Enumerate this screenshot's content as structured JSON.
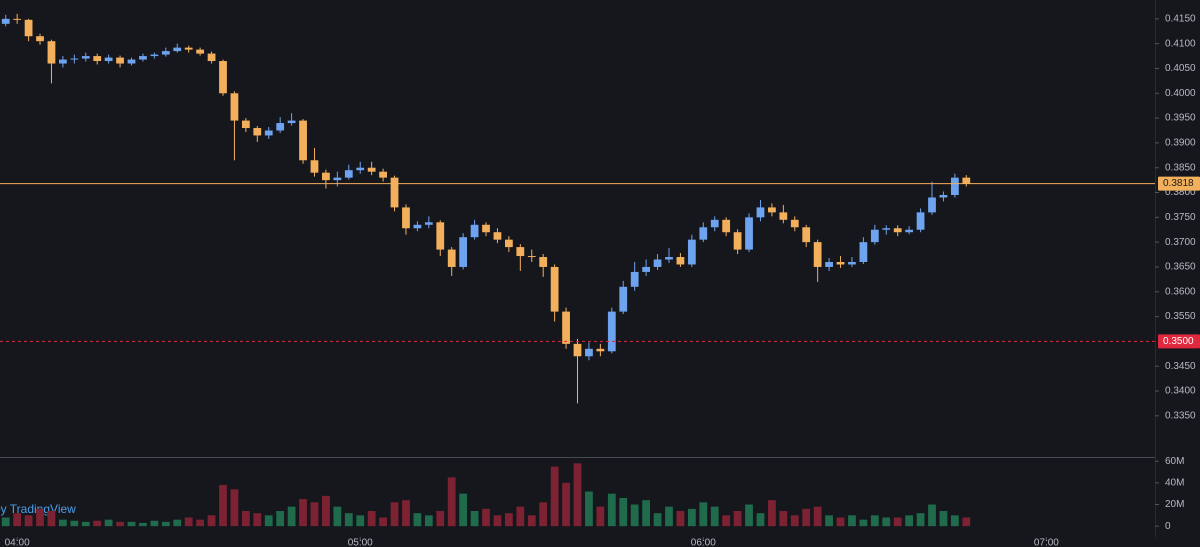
{
  "chart_data": {
    "type": "candlestick",
    "watermark": "by TradingView",
    "x": [
      238,
      240,
      242,
      244,
      246,
      248,
      250,
      252,
      254,
      256,
      258,
      260,
      262,
      264,
      266,
      268,
      270,
      272,
      274,
      276,
      278,
      280,
      282,
      284,
      286,
      288,
      290,
      292,
      294,
      296,
      298,
      300,
      302,
      304,
      306,
      308,
      310,
      312,
      314,
      316,
      318,
      320,
      322,
      324,
      326,
      328,
      330,
      332,
      334,
      336,
      338,
      340,
      342,
      344,
      346,
      348,
      350,
      352,
      354,
      356,
      358,
      360,
      362,
      364,
      366,
      368,
      370,
      372,
      374,
      376,
      378,
      380,
      382,
      384,
      386,
      388,
      390,
      392,
      394,
      396,
      398,
      400,
      402,
      404,
      406
    ],
    "open": [
      0.414,
      0.415,
      0.4148,
      0.4115,
      0.4105,
      0.406,
      0.4068,
      0.407,
      0.4075,
      0.4065,
      0.4072,
      0.406,
      0.4068,
      0.4075,
      0.4078,
      0.4085,
      0.4092,
      0.4088,
      0.408,
      0.4065,
      0.4,
      0.3945,
      0.393,
      0.3915,
      0.3925,
      0.394,
      0.3945,
      0.3865,
      0.384,
      0.3825,
      0.383,
      0.3845,
      0.385,
      0.3842,
      0.383,
      0.377,
      0.3728,
      0.3735,
      0.374,
      0.3685,
      0.365,
      0.371,
      0.3735,
      0.372,
      0.3705,
      0.369,
      0.3672,
      0.367,
      0.365,
      0.356,
      0.3495,
      0.347,
      0.3485,
      0.348,
      0.356,
      0.361,
      0.364,
      0.365,
      0.3665,
      0.367,
      0.3655,
      0.3705,
      0.373,
      0.3745,
      0.372,
      0.3685,
      0.375,
      0.377,
      0.376,
      0.3745,
      0.373,
      0.37,
      0.365,
      0.366,
      0.3655,
      0.366,
      0.37,
      0.3725,
      0.3728,
      0.372,
      0.3725,
      0.376,
      0.379,
      0.3795,
      0.383
    ],
    "high": [
      0.4158,
      0.416,
      0.415,
      0.412,
      0.4108,
      0.4075,
      0.4078,
      0.4082,
      0.408,
      0.4078,
      0.4076,
      0.4072,
      0.408,
      0.4082,
      0.4092,
      0.41,
      0.4096,
      0.4092,
      0.4084,
      0.4068,
      0.4004,
      0.395,
      0.3934,
      0.3932,
      0.3952,
      0.396,
      0.3948,
      0.389,
      0.3846,
      0.3842,
      0.3856,
      0.3862,
      0.3862,
      0.3848,
      0.3834,
      0.3776,
      0.3742,
      0.3752,
      0.3744,
      0.369,
      0.3718,
      0.3745,
      0.374,
      0.3728,
      0.3712,
      0.3696,
      0.3685,
      0.3676,
      0.3655,
      0.3568,
      0.3505,
      0.3498,
      0.3495,
      0.3568,
      0.3622,
      0.366,
      0.3665,
      0.3676,
      0.3688,
      0.3678,
      0.3715,
      0.374,
      0.3752,
      0.375,
      0.3726,
      0.3758,
      0.3785,
      0.3778,
      0.3775,
      0.3752,
      0.3735,
      0.3705,
      0.3668,
      0.3672,
      0.367,
      0.371,
      0.3735,
      0.3734,
      0.3734,
      0.3732,
      0.3768,
      0.3822,
      0.3802,
      0.3838,
      0.3835
    ],
    "low": [
      0.4135,
      0.414,
      0.4105,
      0.4098,
      0.402,
      0.4052,
      0.406,
      0.4064,
      0.4058,
      0.406,
      0.4052,
      0.4056,
      0.4064,
      0.407,
      0.4074,
      0.4082,
      0.4082,
      0.4076,
      0.406,
      0.3995,
      0.3865,
      0.3922,
      0.3902,
      0.3908,
      0.392,
      0.3935,
      0.3858,
      0.3832,
      0.3808,
      0.3812,
      0.3826,
      0.3838,
      0.3835,
      0.3822,
      0.3762,
      0.3715,
      0.3722,
      0.3728,
      0.3672,
      0.3632,
      0.3645,
      0.3705,
      0.3712,
      0.3698,
      0.368,
      0.3642,
      0.366,
      0.363,
      0.354,
      0.3485,
      0.3375,
      0.3462,
      0.347,
      0.3476,
      0.3555,
      0.3602,
      0.3632,
      0.3644,
      0.3658,
      0.365,
      0.365,
      0.37,
      0.3722,
      0.3712,
      0.3676,
      0.368,
      0.3742,
      0.3752,
      0.3738,
      0.3722,
      0.369,
      0.362,
      0.3642,
      0.3648,
      0.365,
      0.3656,
      0.3695,
      0.3715,
      0.3712,
      0.3716,
      0.372,
      0.3755,
      0.3782,
      0.379,
      0.3812
    ],
    "close": [
      0.415,
      0.4148,
      0.4115,
      0.4105,
      0.406,
      0.4068,
      0.407,
      0.4075,
      0.4065,
      0.4072,
      0.406,
      0.4068,
      0.4075,
      0.4078,
      0.4085,
      0.4092,
      0.4088,
      0.408,
      0.4065,
      0.4,
      0.3945,
      0.393,
      0.3915,
      0.3925,
      0.394,
      0.3945,
      0.3865,
      0.384,
      0.3825,
      0.383,
      0.3845,
      0.385,
      0.3842,
      0.383,
      0.377,
      0.3728,
      0.3735,
      0.374,
      0.3685,
      0.365,
      0.371,
      0.3735,
      0.372,
      0.3705,
      0.369,
      0.3672,
      0.367,
      0.365,
      0.356,
      0.3495,
      0.347,
      0.3485,
      0.348,
      0.356,
      0.361,
      0.364,
      0.365,
      0.3665,
      0.367,
      0.3655,
      0.3705,
      0.373,
      0.3745,
      0.372,
      0.3685,
      0.375,
      0.377,
      0.376,
      0.3745,
      0.373,
      0.37,
      0.365,
      0.366,
      0.3655,
      0.366,
      0.37,
      0.3725,
      0.3728,
      0.372,
      0.3725,
      0.376,
      0.379,
      0.3795,
      0.383,
      0.3818
    ],
    "volume": [
      8,
      12,
      10,
      16,
      14,
      6,
      5,
      4,
      5,
      6,
      4,
      4,
      3,
      5,
      4,
      6,
      8,
      6,
      10,
      38,
      34,
      14,
      12,
      10,
      14,
      18,
      25,
      22,
      28,
      18,
      12,
      10,
      14,
      8,
      22,
      24,
      12,
      10,
      14,
      45,
      30,
      14,
      16,
      10,
      12,
      18,
      10,
      22,
      55,
      40,
      58,
      32,
      18,
      30,
      26,
      20,
      24,
      12,
      18,
      14,
      16,
      22,
      18,
      10,
      14,
      20,
      12,
      24,
      14,
      10,
      16,
      18,
      10,
      8,
      10,
      6,
      10,
      8,
      8,
      10,
      12,
      20,
      14,
      10,
      8
    ],
    "up_color": "#6ea3ef",
    "down_color": "#f3b05c",
    "volume_up_color": "#1f6b4c",
    "volume_down_color": "#7c2233",
    "xlim": [
      237,
      439
    ],
    "xticks": [
      {
        "value": 240,
        "label": "04:00"
      },
      {
        "value": 300,
        "label": "05:00"
      },
      {
        "value": 360,
        "label": "06:00"
      },
      {
        "value": 420,
        "label": "07:00"
      }
    ],
    "ylim": [
      0.3267,
      0.4188
    ],
    "yticks": [
      {
        "value": 0.335,
        "label": "0.3350"
      },
      {
        "value": 0.34,
        "label": "0.3400"
      },
      {
        "value": 0.345,
        "label": "0.3450"
      },
      {
        "value": 0.355,
        "label": "0.3550"
      },
      {
        "value": 0.36,
        "label": "0.3600"
      },
      {
        "value": 0.365,
        "label": "0.3650"
      },
      {
        "value": 0.37,
        "label": "0.3700"
      },
      {
        "value": 0.375,
        "label": "0.3750"
      },
      {
        "value": 0.38,
        "label": "0.3800"
      },
      {
        "value": 0.385,
        "label": "0.3850"
      },
      {
        "value": 0.39,
        "label": "0.3900"
      },
      {
        "value": 0.395,
        "label": "0.3950"
      },
      {
        "value": 0.4,
        "label": "0.4000"
      },
      {
        "value": 0.405,
        "label": "0.4050"
      },
      {
        "value": 0.41,
        "label": "0.4100"
      },
      {
        "value": 0.415,
        "label": "0.4150"
      }
    ],
    "volume_ylim": [
      -10,
      62
    ],
    "volume_ticks": [
      0,
      {
        "value": 20,
        "label": "20M"
      },
      {
        "value": 40,
        "label": "40M"
      },
      {
        "value": 60,
        "label": "60M"
      }
    ],
    "price_lines": [
      {
        "value": 0.3818,
        "color": "#f3b05c",
        "dashed": false
      },
      {
        "value": {
          "value": 0.35,
          "label": "0.3500"
        },
        "color": "#e0283e",
        "dashed": true
      }
    ]
  }
}
